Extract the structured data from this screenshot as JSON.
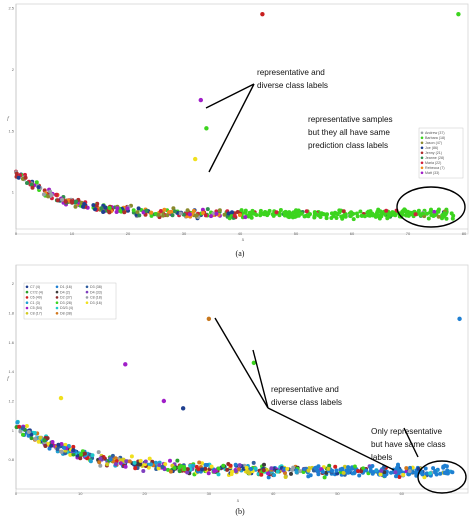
{
  "chart_data": [
    {
      "type": "scatter",
      "xlabel": "x",
      "ylabel": "f",
      "xlim": [
        0,
        80
      ],
      "ylim": [
        0.7,
        2.5
      ],
      "x_ticks": [
        "0",
        "10",
        "20",
        "30",
        "40",
        "50",
        "60",
        "70",
        "80"
      ],
      "y_ticks": [
        "1",
        "1.5",
        "2",
        "2.5"
      ],
      "legend": {
        "placement": "right",
        "entries": [
          {
            "label": "Andrew (37)",
            "color": "#9aa0a6"
          },
          {
            "label": "Barbara (18)",
            "color": "#3cd41e"
          },
          {
            "label": "Jason (47)",
            "color": "#8a8a2c"
          },
          {
            "label": "Joe (86)",
            "color": "#1f3f8f"
          },
          {
            "label": "Jenny (21)",
            "color": "#b02c2c"
          },
          {
            "label": "Jeanne (28)",
            "color": "#2f8f4f"
          },
          {
            "label": "Maria (22)",
            "color": "#d21f3c"
          },
          {
            "label": "Rebecca (7)",
            "color": "#f08a1a"
          },
          {
            "label": "Matt (33)",
            "color": "#a01ec8"
          }
        ]
      },
      "highlights": [
        {
          "x": 44,
          "y": 2.45,
          "color": "#c81e1e"
        },
        {
          "x": 79,
          "y": 2.45,
          "color": "#3cd41e"
        },
        {
          "x": 33,
          "y": 1.75,
          "color": "#a01ec8"
        },
        {
          "x": 32,
          "y": 1.27,
          "color": "#f0e01e"
        },
        {
          "x": 34,
          "y": 1.52,
          "color": "#3cd41e"
        }
      ],
      "annotations": [
        {
          "text": [
            "representative and",
            "diverse class labels"
          ]
        },
        {
          "text": [
            "representative samples",
            "but they all have same",
            "prediction class labels"
          ]
        }
      ],
      "caption": "(a)"
    },
    {
      "type": "scatter",
      "xlabel": "x",
      "ylabel": "f",
      "xlim": [
        0,
        70
      ],
      "ylim": [
        0.6,
        2.1
      ],
      "x_ticks": [
        "0",
        "10",
        "20",
        "30",
        "40",
        "50",
        "60"
      ],
      "y_ticks": [
        "0.8",
        "1",
        "1.2",
        "1.4",
        "1.6",
        "1.8",
        "2"
      ],
      "legend": {
        "placement": "top-left",
        "entries": [
          {
            "label": "C7 (4)",
            "color": "#1f3f8f"
          },
          {
            "label": "C7/2 (4)",
            "color": "#2aa02a"
          },
          {
            "label": "C6 (49)",
            "color": "#d21f1f"
          },
          {
            "label": "C1 (3)",
            "color": "#1fa0d2"
          },
          {
            "label": "C5 (54)",
            "color": "#a01ec8"
          },
          {
            "label": "C8 (17)",
            "color": "#d2c81e"
          },
          {
            "label": "D1 (16)",
            "color": "#1e7fd2"
          },
          {
            "label": "D4 (2)",
            "color": "#3c3c3c"
          },
          {
            "label": "D2 (37)",
            "color": "#8f2c2c"
          },
          {
            "label": "D3 (28)",
            "color": "#3cd41e"
          },
          {
            "label": "D3/3 (4)",
            "color": "#1fc8c8"
          },
          {
            "label": "D8 (38)",
            "color": "#d2781e"
          },
          {
            "label": "D3 (38)",
            "color": "#2f5f9f"
          },
          {
            "label": "D4 (33)",
            "color": "#7f3fbf"
          },
          {
            "label": "C8 (18)",
            "color": "#9aa0a6"
          },
          {
            "label": "D3 (16)",
            "color": "#f0e01e"
          }
        ]
      },
      "highlights": [
        {
          "x": 30,
          "y": 1.76,
          "color": "#c8781e"
        },
        {
          "x": 69,
          "y": 1.76,
          "color": "#1f7fd2"
        },
        {
          "x": 17,
          "y": 1.45,
          "color": "#a01ec8"
        },
        {
          "x": 37,
          "y": 1.46,
          "color": "#3cd41e"
        },
        {
          "x": 23,
          "y": 1.2,
          "color": "#a01ec8"
        },
        {
          "x": 7,
          "y": 1.22,
          "color": "#f0e01e"
        },
        {
          "x": 26,
          "y": 1.15,
          "color": "#1f3f8f"
        }
      ],
      "annotations": [
        {
          "text": [
            "representative and",
            "diverse class labels"
          ]
        },
        {
          "text": [
            "Only representative",
            "but have same class",
            "labels"
          ]
        }
      ],
      "caption": "(b)"
    }
  ]
}
